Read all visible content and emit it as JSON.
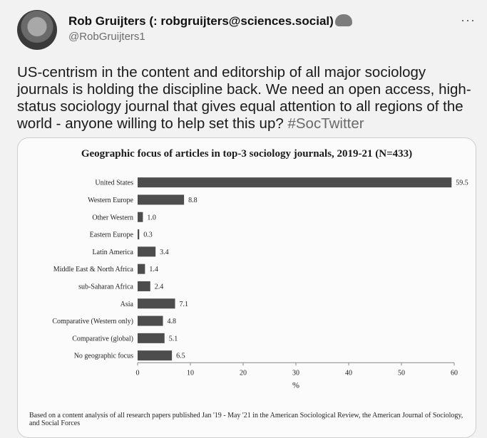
{
  "tweet": {
    "author_name": "Rob Gruijters (: robgruijters@sciences.social)",
    "handle": "@RobGruijters1",
    "more_label": "···",
    "text": "US-centrism in the content and editorship of all major sociology journals is holding the discipline back. We need an open access, high-status sociology journal that gives equal attention to all regions of the world - anyone willing to help set this up?",
    "hashtag": "#SocTwitter",
    "icons": {
      "author_emoji": "elephant-icon",
      "menu": "more-icon"
    }
  },
  "chart_data": {
    "type": "bar",
    "orientation": "horizontal",
    "title": "Geographic focus of articles in top-3 sociology journals, 2019-21 (N=433)",
    "xlabel": "%",
    "ylabel": "",
    "xlim": [
      0,
      60
    ],
    "xticks": [
      0,
      10,
      20,
      30,
      40,
      50,
      60
    ],
    "categories": [
      "United States",
      "Western Europe",
      "Other Western",
      "Eastern Europe",
      "Latin America",
      "Middle East & North Africa",
      "sub-Saharan Africa",
      "Asia",
      "Comparative (Western only)",
      "Comparative (global)",
      "No geographic focus"
    ],
    "values": [
      59.5,
      8.8,
      1.0,
      0.3,
      3.4,
      1.4,
      2.4,
      7.1,
      4.8,
      5.1,
      6.5
    ],
    "value_labels": [
      "59.5",
      "8.8",
      "1.0",
      "0.3",
      "3.4",
      "1.4",
      "2.4",
      "7.1",
      "4.8",
      "5.1",
      "6.5"
    ],
    "bar_color": "#4d4d4d",
    "grid": false,
    "note": "Based on a content analysis of all research papers published Jan '19 - May '21 in the American Sociological Review, the American Journal of Sociology, and Social Forces"
  }
}
